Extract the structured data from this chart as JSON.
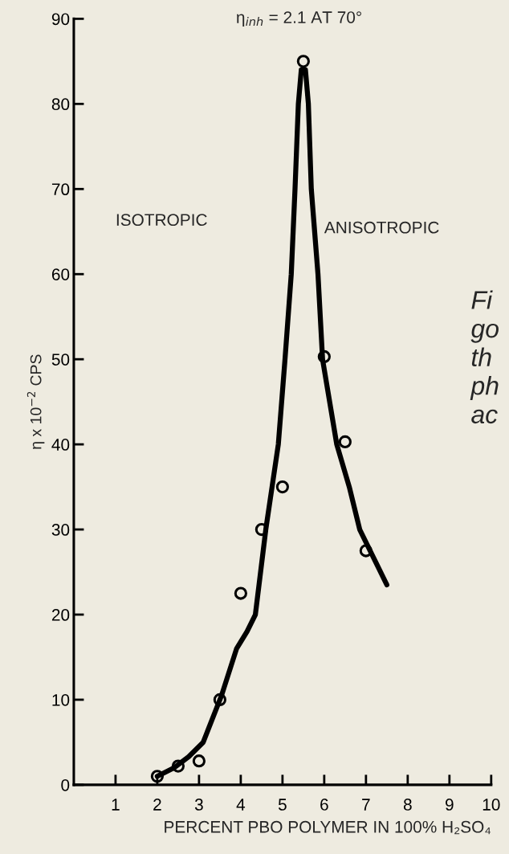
{
  "chart_data": {
    "type": "scatter",
    "xlabel": "PERCENT PBO POLYMER IN 100% H₂SO₄",
    "ylabel": "η x 10$^{−2}$ CPS",
    "xlim": [
      0,
      10
    ],
    "xticks": [
      1,
      2,
      3,
      4,
      5,
      6,
      7,
      8,
      9,
      10
    ],
    "ylim": [
      0,
      90
    ],
    "yticks": [
      0,
      10,
      20,
      30,
      40,
      50,
      60,
      70,
      80,
      90
    ],
    "grid": false,
    "legend": false,
    "series": [
      {
        "marker": "circle",
        "color": "#000000",
        "x": [
          2,
          2.5,
          3,
          3.5,
          4,
          4.5,
          5,
          5.5,
          6,
          6.5,
          7
        ],
        "values": [
          1,
          2.2,
          2.8,
          10,
          22.5,
          30,
          35,
          85,
          50.3,
          40.3,
          27.5
        ]
      },
      {
        "type": "line",
        "marker": "none",
        "line_style": "solid",
        "color": "#000000",
        "x": [
          2,
          2.4,
          2.75,
          3.1,
          3.54,
          3.9,
          4.15,
          4.35,
          4.6,
          4.75,
          4.9,
          5.06,
          5.21,
          5.3,
          5.38,
          5.45,
          5.55,
          5.62,
          5.69,
          5.85,
          5.96,
          6.3,
          6.6,
          6.85,
          7.5
        ],
        "values": [
          1,
          2,
          3.3,
          5,
          10.5,
          16,
          18,
          20,
          30,
          35,
          40,
          50,
          60,
          70,
          80,
          84,
          84,
          80,
          70,
          60,
          50,
          40,
          35,
          30,
          23.5
        ]
      }
    ],
    "annotations": [
      "η$_{inh}$ = 2.1 AT 70°",
      "ISOTROPIC",
      "ANISOTROPIC",
      "Fi\ngo\nth\nph\nac"
    ]
  }
}
